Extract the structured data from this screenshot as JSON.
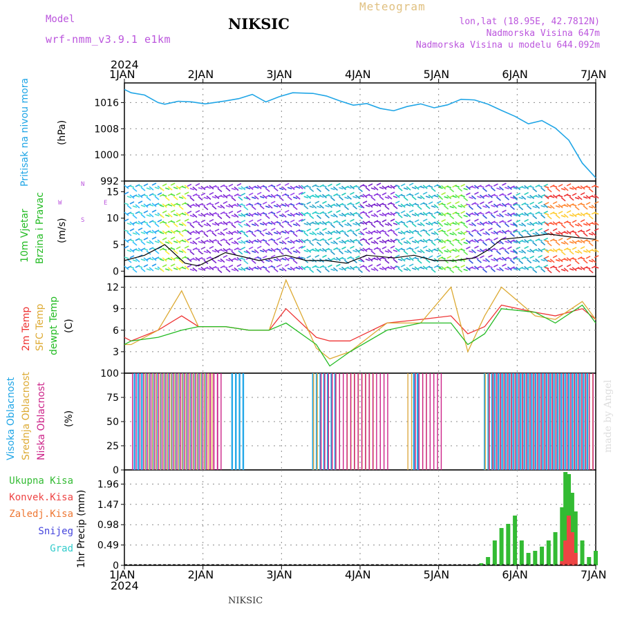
{
  "header": {
    "model_label": "Model",
    "model_value": "wrf-nmm_v3.9.1 e1km",
    "station": "NIKSIC",
    "title": "Meteogram",
    "coords": "lon,lat (18.95E, 42.7812N)",
    "altitude": "Nadmorska Visina 647m",
    "model_altitude": "Nadmorska Visina u modelu 644.092m"
  },
  "footer": {
    "station": "NIKSIC",
    "credit": "made by Angel"
  },
  "time_axis": {
    "year": "2024",
    "ticks": [
      "1JAN",
      "2JAN",
      "3JAN",
      "4JAN",
      "5JAN",
      "6JAN",
      "7JAN"
    ]
  },
  "colors": {
    "pressure": "#1fa5e6",
    "wind_label": "#22bb22",
    "wind_speed": "#000000",
    "temp2m": "#ee3333",
    "sfc_temp": "#ddaa33",
    "dewpt": "#22bb22",
    "cloud_high": "#22a8e8",
    "cloud_mid": "#ddaa44",
    "cloud_low": "#cc2288",
    "precip_total": "#33bb33",
    "precip_conv": "#ee4444",
    "precip_frz": "#ee7733",
    "snow": "#4444dd",
    "hail": "#33cccc",
    "compass": "#bb55dd"
  },
  "compass": {
    "n": "N",
    "s": "S",
    "e": "E",
    "w": "W"
  },
  "panels": {
    "pressure": {
      "labels": [
        "Pritisak na nivou mora"
      ],
      "unit": "(hPa)"
    },
    "wind": {
      "labels": [
        "10m Vjetar",
        "Brzina i Pravac"
      ],
      "unit": "(m/s)"
    },
    "temp": {
      "labels": [
        "2m Temp",
        "SFC Temp",
        "dewpt Temp"
      ],
      "unit": "(C)"
    },
    "cloud": {
      "labels": [
        "Visoka Oblacnost",
        "Srednja Oblacnost",
        "Niska Oblacnost"
      ],
      "unit": "(%)"
    },
    "precip": {
      "labels": [
        "Ukupna Kisa",
        "Konvek.Kisa",
        "Zaledj.Kisa",
        "Snijeg",
        "Grad"
      ],
      "unit": "1hr Precip (mm)"
    }
  },
  "chart_data": [
    {
      "type": "line",
      "ylabel": "Pritisak na nivou mora (hPa)",
      "ylim": [
        992,
        1022
      ],
      "yticks": [
        992,
        1000,
        1008,
        1016
      ],
      "x": [
        0,
        0.1,
        0.3,
        0.5,
        0.6,
        0.8,
        1.0,
        1.2,
        1.5,
        1.7,
        1.9,
        2.1,
        2.3,
        2.5,
        2.8,
        3.0,
        3.2,
        3.4,
        3.6,
        3.8,
        4.0,
        4.2,
        4.4,
        4.6,
        4.8,
        5.0,
        5.2,
        5.4,
        5.6,
        5.8,
        6.0,
        6.2,
        6.4,
        6.6,
        6.8,
        7.0
      ],
      "values": [
        1020,
        1019,
        1018.3,
        1016,
        1015.5,
        1016.4,
        1016.2,
        1015.6,
        1016.5,
        1017.2,
        1018.5,
        1016.2,
        1017.8,
        1019,
        1018.8,
        1018,
        1016.5,
        1015.2,
        1015.7,
        1014.2,
        1013.5,
        1014.8,
        1015.6,
        1014.4,
        1015.3,
        1017,
        1016.8,
        1015.5,
        1013.6,
        1011.8,
        1009.5,
        1010.5,
        1008.2,
        1004.5,
        997.5,
        993
      ],
      "grid": true
    },
    {
      "type": "line",
      "ylabel": "10m Vjetar Brzina i Pravac (m/s)",
      "ylim": [
        -1,
        17
      ],
      "yticks": [
        0,
        5,
        10,
        15
      ],
      "x": [
        0,
        0.3,
        0.6,
        0.9,
        1.1,
        1.5,
        2.0,
        2.4,
        2.7,
        3.0,
        3.3,
        3.6,
        4.0,
        4.3,
        4.6,
        4.9,
        5.2,
        5.4,
        5.6,
        6.0,
        6.3,
        6.6,
        7.0
      ],
      "values": [
        2,
        3,
        5,
        1.5,
        1,
        3.5,
        2,
        3,
        2,
        2,
        1.5,
        3,
        2.5,
        3,
        2,
        2,
        2.5,
        4,
        6,
        6.5,
        7,
        6.5,
        6
      ],
      "grid": true
    },
    {
      "type": "line",
      "ylabel": "(C)",
      "ylim": [
        0,
        13.5
      ],
      "yticks": [
        3,
        6,
        9,
        12
      ],
      "x": [
        0,
        0.1,
        0.5,
        0.85,
        1.1,
        1.5,
        1.85,
        2.15,
        2.4,
        2.85,
        3.05,
        3.35,
        3.9,
        4.4,
        4.85,
        5.1,
        5.35,
        5.6,
        6.1,
        6.4,
        6.8,
        7.0
      ],
      "series": [
        {
          "name": "2m Temp",
          "values": [
            5,
            4.5,
            6,
            8,
            6.5,
            6.5,
            6,
            6,
            9,
            5,
            4.5,
            4.5,
            7,
            7.5,
            8,
            5.5,
            6.5,
            9.5,
            8.5,
            8,
            9,
            7.5
          ]
        },
        {
          "name": "SFC Temp",
          "values": [
            4,
            4,
            6,
            11.5,
            6.5,
            6.5,
            6,
            6,
            13,
            3.5,
            2,
            3,
            7,
            7,
            12,
            3,
            8,
            12,
            8,
            7.5,
            10,
            7.5
          ]
        },
        {
          "name": "dewpt Temp",
          "values": [
            4,
            4.5,
            5,
            6,
            6.5,
            6.5,
            6,
            6,
            7,
            4,
            1,
            3,
            6,
            7,
            7,
            4,
            5.5,
            9,
            8.5,
            7,
            9.5,
            7
          ]
        }
      ],
      "grid": true
    },
    {
      "type": "bar",
      "ylabel": "(%)",
      "ylim": [
        0,
        100
      ],
      "yticks": [
        0,
        25,
        50,
        75,
        100
      ],
      "series": [
        {
          "name": "Visoka Oblacnost",
          "segments": [
            [
              0.15,
              1.25,
              100
            ],
            [
              1.6,
              1.8,
              100
            ],
            [
              2.8,
              3.15,
              100
            ],
            [
              4.3,
              4.4,
              100
            ],
            [
              5.35,
              5.5,
              100
            ],
            [
              5.5,
              6.9,
              100
            ]
          ]
        },
        {
          "name": "Srednja Oblacnost",
          "segments": [
            [
              0.3,
              1.3,
              100
            ],
            [
              2.8,
              3.2,
              100
            ],
            [
              3.3,
              3.7,
              100
            ],
            [
              4.2,
              4.5,
              100
            ],
            [
              5.35,
              6.95,
              100
            ]
          ]
        },
        {
          "name": "Niska Oblacnost",
          "segments": [
            [
              0.1,
              1.4,
              100
            ],
            [
              1.25,
              1.45,
              100
            ],
            [
              2.9,
              3.9,
              100
            ],
            [
              4.3,
              4.7,
              100
            ],
            [
              5.4,
              6.95,
              100
            ]
          ]
        }
      ],
      "grid": true
    },
    {
      "type": "bar",
      "ylabel": "1hr Precip (mm)",
      "ylim": [
        0,
        2.3
      ],
      "yticks": [
        0,
        0.49,
        0.98,
        1.47,
        1.96
      ],
      "x": [
        5.3,
        5.4,
        5.5,
        5.6,
        5.7,
        5.8,
        5.9,
        6.0,
        6.1,
        6.2,
        6.3,
        6.4,
        6.5,
        6.55,
        6.6,
        6.65,
        6.7,
        6.8,
        6.9,
        7.0
      ],
      "series": [
        {
          "name": "Ukupna Kisa",
          "values": [
            0.05,
            0.2,
            0.6,
            0.9,
            1.0,
            1.2,
            0.6,
            0.3,
            0.35,
            0.45,
            0.6,
            0.8,
            1.4,
            2.25,
            2.2,
            1.75,
            1.3,
            0.6,
            0.2,
            0.35
          ]
        },
        {
          "name": "Konvek.Kisa",
          "values": [
            0,
            0,
            0,
            0,
            0,
            0,
            0,
            0,
            0,
            0,
            0,
            0,
            0.1,
            0.6,
            1.2,
            0.8,
            0.3,
            0,
            0,
            0
          ]
        }
      ],
      "grid": true
    }
  ]
}
